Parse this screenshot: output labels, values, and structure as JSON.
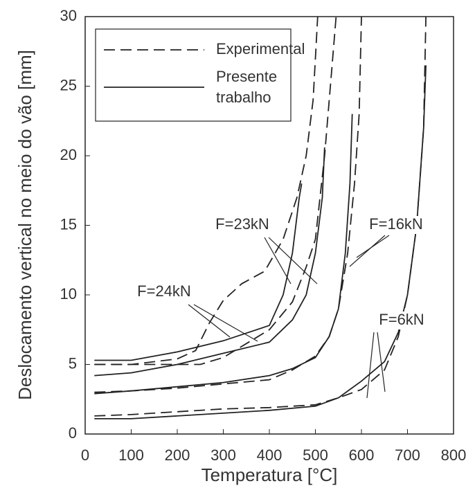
{
  "chart_data": {
    "type": "line",
    "xlabel": "Temperatura [°C]",
    "ylabel": "Deslocamento vertical no meio do vão [mm]",
    "xlim": [
      0,
      800
    ],
    "ylim": [
      0,
      30
    ],
    "xticks": [
      0,
      100,
      200,
      300,
      400,
      500,
      600,
      700,
      800
    ],
    "yticks": [
      0,
      5,
      10,
      15,
      20,
      25,
      30
    ],
    "color": "#222222",
    "legend": [
      {
        "name": "Experimental",
        "style": "dashed"
      },
      {
        "name": "Presente\ntrabalho",
        "style": "solid"
      }
    ],
    "groups": [
      {
        "label": "F=24kN",
        "series": [
          {
            "style": "dashed",
            "x": [
              20,
              100,
              200,
              240,
              270,
              300,
              340,
              390,
              430,
              460,
              480,
              495,
              505
            ],
            "values": [
              5.0,
              5.0,
              5.4,
              6.0,
              8.0,
              9.6,
              10.8,
              11.7,
              14.0,
              17.0,
              20.0,
              24.0,
              30.0
            ]
          },
          {
            "style": "solid",
            "x": [
              20,
              100,
              200,
              300,
              400,
              430,
              450,
              465,
              470
            ],
            "values": [
              5.3,
              5.3,
              5.9,
              6.7,
              7.8,
              10.0,
              13.0,
              17.0,
              18.0
            ]
          }
        ]
      },
      {
        "label": "F=23kN",
        "series": [
          {
            "style": "dashed",
            "x": [
              20,
              100,
              250,
              300,
              400,
              450,
              480,
              500,
              520,
              535,
              545
            ],
            "values": [
              5.0,
              5.0,
              5.0,
              5.5,
              7.5,
              9.5,
              12.0,
              14.0,
              20.0,
              26.0,
              30.0
            ]
          },
          {
            "style": "solid",
            "x": [
              20,
              100,
              200,
              300,
              400,
              450,
              480,
              500,
              515,
              520
            ],
            "values": [
              4.2,
              4.4,
              5.0,
              5.8,
              6.6,
              8.2,
              10.0,
              13.0,
              17.0,
              20.6
            ]
          }
        ]
      },
      {
        "label": "F=16kN",
        "series": [
          {
            "style": "dashed",
            "x": [
              20,
              100,
              200,
              300,
              400,
              450,
              500,
              530,
              550,
              570,
              585,
              595,
              600
            ],
            "values": [
              3.0,
              3.1,
              3.3,
              3.6,
              3.9,
              4.6,
              5.6,
              7.0,
              9.0,
              13.0,
              18.0,
              23.0,
              30.0
            ]
          },
          {
            "style": "solid",
            "x": [
              20,
              100,
              200,
              300,
              400,
              450,
              500,
              530,
              550,
              565,
              575,
              580
            ],
            "values": [
              2.9,
              3.1,
              3.4,
              3.7,
              4.2,
              4.7,
              5.5,
              7.0,
              9.0,
              13.0,
              18.0,
              23.0
            ]
          }
        ]
      },
      {
        "label": "F=6kN",
        "series": [
          {
            "style": "dashed",
            "x": [
              20,
              100,
              200,
              300,
              400,
              500,
              550,
              600,
              650,
              680,
              700,
              720,
              735,
              740
            ],
            "values": [
              1.3,
              1.4,
              1.6,
              1.8,
              1.9,
              2.1,
              2.6,
              3.2,
              4.6,
              7.0,
              10.0,
              15.0,
              22.0,
              30.0
            ]
          },
          {
            "style": "solid",
            "x": [
              20,
              100,
              200,
              300,
              400,
              500,
              550,
              600,
              650,
              680,
              700,
              720,
              735,
              740
            ],
            "values": [
              1.1,
              1.1,
              1.3,
              1.5,
              1.7,
              2.0,
              2.6,
              3.8,
              5.2,
              7.3,
              10.0,
              15.0,
              22.0,
              26.5
            ]
          }
        ]
      }
    ]
  }
}
